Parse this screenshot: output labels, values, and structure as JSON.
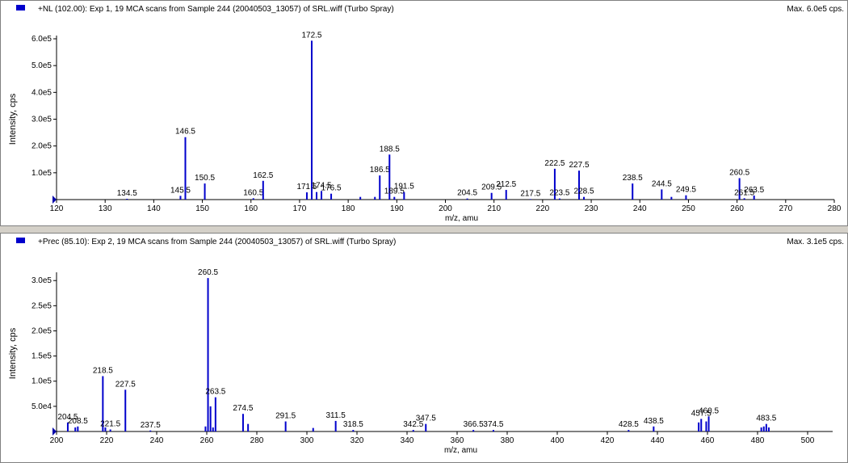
{
  "chart_data": [
    {
      "type": "bar",
      "title": "+NL (102.00): Exp 1, 19 MCA scans from Sample 244 (20040503_13057) of SRL.wiff (Turbo Spray)",
      "max_label": "Max. 6.0e5 cps.",
      "xlabel": "m/z, amu",
      "ylabel": "Intensity, cps",
      "xlim": [
        120,
        280
      ],
      "ylim": [
        0,
        600000
      ],
      "xticks": [
        120,
        130,
        140,
        150,
        160,
        170,
        180,
        190,
        200,
        210,
        220,
        230,
        240,
        250,
        260,
        270,
        280
      ],
      "yticks": [
        {
          "value": 100000,
          "label": "1.0e5"
        },
        {
          "value": 200000,
          "label": "2.0e5"
        },
        {
          "value": 300000,
          "label": "3.0e5"
        },
        {
          "value": 400000,
          "label": "4.0e5"
        },
        {
          "value": 500000,
          "label": "5.0e5"
        },
        {
          "value": 600000,
          "label": "6.0e5"
        }
      ],
      "peaks": [
        {
          "mz": 134.5,
          "intensity": 3000,
          "label": "134.5"
        },
        {
          "mz": 145.5,
          "intensity": 14000,
          "label": "145.5"
        },
        {
          "mz": 146.5,
          "intensity": 233000,
          "label": "146.5"
        },
        {
          "mz": 150.5,
          "intensity": 60000,
          "label": "150.5"
        },
        {
          "mz": 160.5,
          "intensity": 5000,
          "label": "160.5"
        },
        {
          "mz": 162.5,
          "intensity": 70000,
          "label": "162.5"
        },
        {
          "mz": 171.5,
          "intensity": 27000,
          "label": "171.5"
        },
        {
          "mz": 172.5,
          "intensity": 593000,
          "label": "172.5"
        },
        {
          "mz": 173.5,
          "intensity": 28000,
          "label": ""
        },
        {
          "mz": 174.5,
          "intensity": 32000,
          "label": "174.5"
        },
        {
          "mz": 176.5,
          "intensity": 22000,
          "label": "176.5"
        },
        {
          "mz": 182.5,
          "intensity": 10000,
          "label": ""
        },
        {
          "mz": 185.5,
          "intensity": 10000,
          "label": ""
        },
        {
          "mz": 186.5,
          "intensity": 90000,
          "label": "186.5"
        },
        {
          "mz": 188.5,
          "intensity": 168000,
          "label": "188.5"
        },
        {
          "mz": 189.5,
          "intensity": 10000,
          "label": "189.5"
        },
        {
          "mz": 191.5,
          "intensity": 28000,
          "label": "191.5"
        },
        {
          "mz": 204.5,
          "intensity": 4000,
          "label": "204.5"
        },
        {
          "mz": 209.5,
          "intensity": 25000,
          "label": "209.5"
        },
        {
          "mz": 212.5,
          "intensity": 36000,
          "label": "212.5"
        },
        {
          "mz": 217.5,
          "intensity": 2000,
          "label": "217.5"
        },
        {
          "mz": 222.5,
          "intensity": 115000,
          "label": "222.5"
        },
        {
          "mz": 223.5,
          "intensity": 4000,
          "label": "223.5"
        },
        {
          "mz": 227.5,
          "intensity": 108000,
          "label": "227.5"
        },
        {
          "mz": 228.5,
          "intensity": 10000,
          "label": "228.5"
        },
        {
          "mz": 238.5,
          "intensity": 60000,
          "label": "238.5"
        },
        {
          "mz": 244.5,
          "intensity": 38000,
          "label": "244.5"
        },
        {
          "mz": 246.5,
          "intensity": 10000,
          "label": ""
        },
        {
          "mz": 249.5,
          "intensity": 16000,
          "label": "249.5"
        },
        {
          "mz": 260.5,
          "intensity": 80000,
          "label": "260.5"
        },
        {
          "mz": 261.5,
          "intensity": 5000,
          "label": "261.5"
        },
        {
          "mz": 263.5,
          "intensity": 15000,
          "label": "263.5"
        }
      ]
    },
    {
      "type": "bar",
      "title": "+Prec (85.10): Exp 2, 19 MCA scans from Sample 244 (20040503_13057) of SRL.wiff (Turbo Spray)",
      "max_label": "Max. 3.1e5 cps.",
      "xlabel": "m/z, amu",
      "ylabel": "Intensity, cps",
      "xlim": [
        200,
        510
      ],
      "ylim": [
        0,
        310000
      ],
      "xticks": [
        200,
        220,
        240,
        260,
        280,
        300,
        320,
        340,
        360,
        380,
        400,
        420,
        440,
        460,
        480,
        500
      ],
      "yticks": [
        {
          "value": 50000,
          "label": "5.0e4"
        },
        {
          "value": 100000,
          "label": "1.0e5"
        },
        {
          "value": 150000,
          "label": "1.5e5"
        },
        {
          "value": 200000,
          "label": "2.0e5"
        },
        {
          "value": 250000,
          "label": "2.5e5"
        },
        {
          "value": 300000,
          "label": "3.0e5"
        }
      ],
      "peaks": [
        {
          "mz": 204.5,
          "intensity": 18000,
          "label": "204.5"
        },
        {
          "mz": 207.5,
          "intensity": 8000,
          "label": ""
        },
        {
          "mz": 208.5,
          "intensity": 10000,
          "label": "208.5"
        },
        {
          "mz": 218.5,
          "intensity": 110000,
          "label": "218.5"
        },
        {
          "mz": 219.5,
          "intensity": 8000,
          "label": ""
        },
        {
          "mz": 221.5,
          "intensity": 4000,
          "label": "221.5"
        },
        {
          "mz": 227.5,
          "intensity": 83000,
          "label": "227.5"
        },
        {
          "mz": 237.5,
          "intensity": 2000,
          "label": "237.5"
        },
        {
          "mz": 259.5,
          "intensity": 10000,
          "label": ""
        },
        {
          "mz": 260.5,
          "intensity": 305000,
          "label": "260.5"
        },
        {
          "mz": 261.5,
          "intensity": 50000,
          "label": ""
        },
        {
          "mz": 262.5,
          "intensity": 8000,
          "label": ""
        },
        {
          "mz": 263.5,
          "intensity": 68000,
          "label": "263.5"
        },
        {
          "mz": 274.5,
          "intensity": 35000,
          "label": "274.5"
        },
        {
          "mz": 276.5,
          "intensity": 15000,
          "label": ""
        },
        {
          "mz": 291.5,
          "intensity": 20000,
          "label": "291.5"
        },
        {
          "mz": 302.5,
          "intensity": 7000,
          "label": ""
        },
        {
          "mz": 311.5,
          "intensity": 21000,
          "label": "311.5"
        },
        {
          "mz": 318.5,
          "intensity": 3000,
          "label": "318.5"
        },
        {
          "mz": 342.5,
          "intensity": 3000,
          "label": "342.5"
        },
        {
          "mz": 347.5,
          "intensity": 15000,
          "label": "347.5"
        },
        {
          "mz": 366.5,
          "intensity": 3000,
          "label": "366.5"
        },
        {
          "mz": 374.5,
          "intensity": 3000,
          "label": "374.5"
        },
        {
          "mz": 428.5,
          "intensity": 3000,
          "label": "428.5"
        },
        {
          "mz": 438.5,
          "intensity": 10000,
          "label": "438.5"
        },
        {
          "mz": 456.5,
          "intensity": 18000,
          "label": ""
        },
        {
          "mz": 457.5,
          "intensity": 25000,
          "label": "457.5"
        },
        {
          "mz": 459.5,
          "intensity": 20000,
          "label": ""
        },
        {
          "mz": 460.5,
          "intensity": 30000,
          "label": "460.5"
        },
        {
          "mz": 481.5,
          "intensity": 8000,
          "label": ""
        },
        {
          "mz": 482.5,
          "intensity": 10000,
          "label": ""
        },
        {
          "mz": 483.5,
          "intensity": 15000,
          "label": "483.5"
        },
        {
          "mz": 484.5,
          "intensity": 8000,
          "label": ""
        }
      ]
    }
  ],
  "colors": {
    "peak": "#0000cc",
    "axis": "#000000",
    "marker": "#0000aa"
  }
}
